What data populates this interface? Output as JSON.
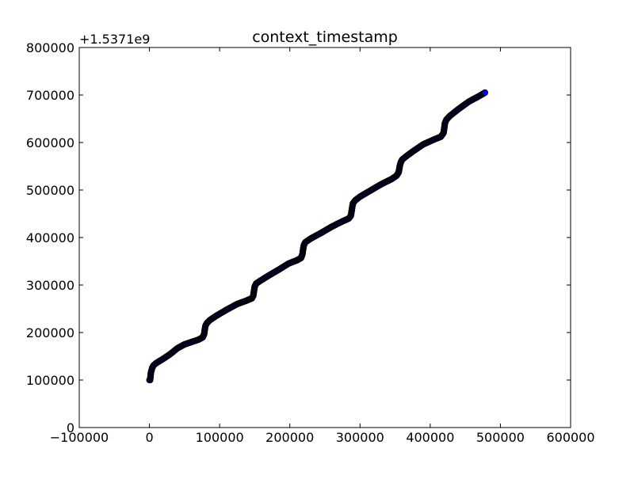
{
  "chart_data": {
    "type": "scatter",
    "title": "context_timestamp",
    "xlabel": "",
    "ylabel": "",
    "y_offset_label": "+1.5371e9",
    "xlim": [
      -100000,
      600000
    ],
    "ylim": [
      0,
      800000
    ],
    "x_ticks": [
      -100000,
      0,
      100000,
      200000,
      300000,
      400000,
      500000,
      600000
    ],
    "x_tick_labels": [
      "−100000",
      "0",
      "100000",
      "200000",
      "300000",
      "400000",
      "500000",
      "600000"
    ],
    "y_ticks": [
      0,
      100000,
      200000,
      300000,
      400000,
      500000,
      600000,
      700000,
      800000
    ],
    "y_tick_labels": [
      "0",
      "100000",
      "200000",
      "300000",
      "400000",
      "500000",
      "600000",
      "700000",
      "800000"
    ],
    "grid": false,
    "marker_fill": "#0000ff",
    "marker_edge": "#000000",
    "series": [
      {
        "x": [
          0,
          1000,
          2000,
          4000,
          6000,
          10000,
          20000,
          30000,
          40000,
          50000,
          60000,
          70000,
          76000,
          78000,
          79000,
          80000,
          82000,
          86000,
          95000,
          110000,
          125000,
          138000,
          146000,
          148000,
          149000,
          150000,
          152000,
          158000,
          170000,
          185000,
          198000,
          210000,
          216000,
          218000,
          219000,
          220000,
          222000,
          230000,
          245000,
          260000,
          275000,
          284000,
          287000,
          288000,
          289000,
          290000,
          293000,
          300000,
          315000,
          330000,
          345000,
          352000,
          355000,
          356000,
          357000,
          358000,
          360000,
          365000,
          375000,
          390000,
          405000,
          415000,
          419000,
          420000,
          421000,
          423000,
          428000,
          440000,
          455000,
          470000,
          478000
        ],
        "y": [
          100000,
          100000,
          115000,
          126000,
          131000,
          136000,
          145000,
          155000,
          167000,
          175000,
          180000,
          185000,
          190000,
          197000,
          208000,
          215000,
          220000,
          226000,
          235000,
          248000,
          260000,
          267000,
          272000,
          278000,
          288000,
          297000,
          303000,
          309000,
          320000,
          333000,
          345000,
          352000,
          357000,
          365000,
          376000,
          384000,
          390000,
          398000,
          410000,
          423000,
          434000,
          440000,
          446000,
          455000,
          465000,
          472000,
          478000,
          486000,
          499000,
          512000,
          523000,
          530000,
          537000,
          545000,
          553000,
          558000,
          564000,
          570000,
          581000,
          596000,
          606000,
          612000,
          620000,
          630000,
          641000,
          648000,
          656000,
          670000,
          686000,
          698000,
          705000
        ]
      }
    ]
  }
}
